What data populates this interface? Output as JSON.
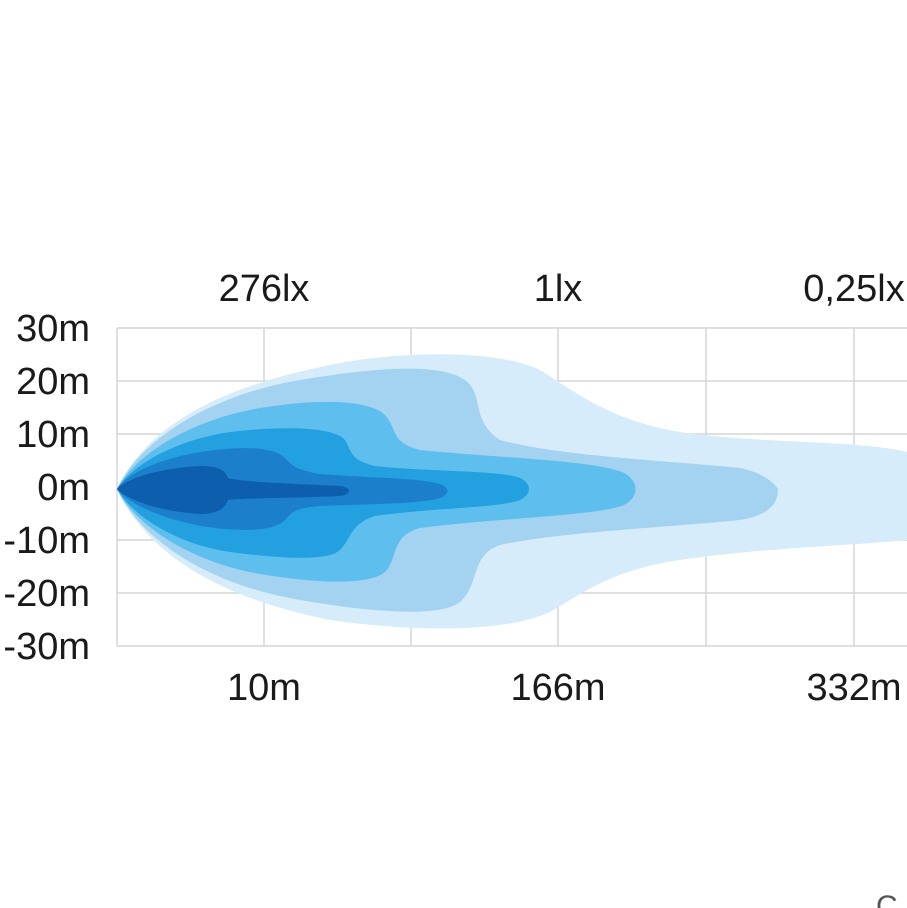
{
  "chart_data": {
    "type": "area",
    "title": "",
    "xlabel": "",
    "ylabel": "",
    "lux_labels": [
      {
        "text": "276lx",
        "at": 10
      },
      {
        "text": "1lx",
        "at": 166
      },
      {
        "text": "0,25lx",
        "at": 332
      }
    ],
    "x_ticks": [
      {
        "text": "10m",
        "at": 10
      },
      {
        "text": "166m",
        "at": 166
      },
      {
        "text": "332m",
        "at": 332
      }
    ],
    "y_ticks": [
      "30m",
      "20m",
      "10m",
      "0m",
      "-10m",
      "-20m",
      "-30m"
    ],
    "y_values": [
      30,
      20,
      10,
      0,
      -10,
      -20,
      -30
    ],
    "ylim": [
      -30,
      30
    ],
    "grid": true,
    "zones": [
      {
        "color": "#d6ecfa"
      },
      {
        "color": "#a4d3f2"
      },
      {
        "color": "#5ebfee"
      },
      {
        "color": "#23a0df"
      },
      {
        "color": "#1c7fcb"
      },
      {
        "color": "#0d5fae"
      }
    ]
  },
  "corner_glyph": "C"
}
